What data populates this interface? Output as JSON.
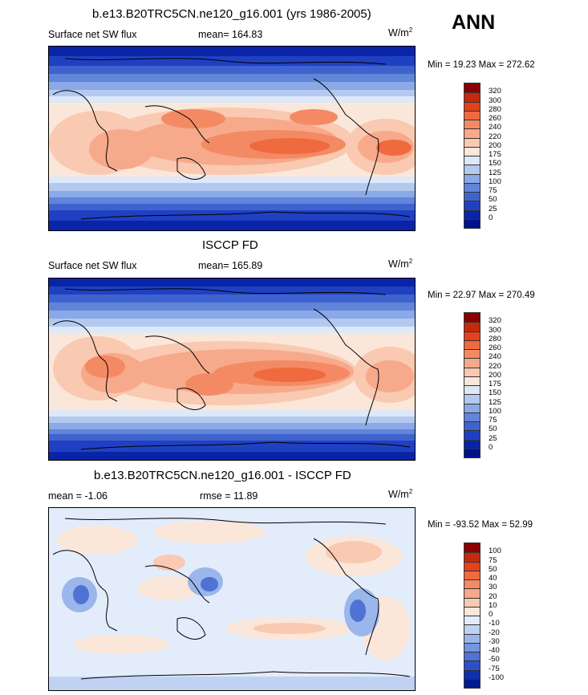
{
  "annotation": "ANN",
  "panels": [
    {
      "title": "b.e13.B20TRC5CN.ne120_g16.001 (yrs 1986-2005)",
      "left_label": "Surface net SW flux",
      "mid_label": "mean= 164.83",
      "units_base": "W/m",
      "units_sup": "2",
      "minmax": "Min =  19.23 Max = 272.62",
      "colorbar": {
        "labels": [
          "320",
          "300",
          "280",
          "260",
          "240",
          "220",
          "200",
          "175",
          "150",
          "125",
          "100",
          "75",
          "50",
          "25",
          "0"
        ],
        "colors": [
          "#8b0000",
          "#c52a0c",
          "#e6411d",
          "#f06a3f",
          "#f48a63",
          "#f7a98b",
          "#f9c9b1",
          "#fbe7d9",
          "#dde8f8",
          "#b4c9f0",
          "#8aa9e6",
          "#6185d9",
          "#3f63ce",
          "#2040c2",
          "#0a24a8",
          "#00128a"
        ]
      }
    },
    {
      "title": "ISCCP FD",
      "left_label": "Surface net SW flux",
      "mid_label": "mean= 165.89",
      "units_base": "W/m",
      "units_sup": "2",
      "minmax": "Min =  22.97 Max = 270.49",
      "colorbar": {
        "labels": [
          "320",
          "300",
          "280",
          "260",
          "240",
          "220",
          "200",
          "175",
          "150",
          "125",
          "100",
          "75",
          "50",
          "25",
          "0"
        ],
        "colors": [
          "#8b0000",
          "#c52a0c",
          "#e6411d",
          "#f06a3f",
          "#f48a63",
          "#f7a98b",
          "#f9c9b1",
          "#fbe7d9",
          "#dde8f8",
          "#b4c9f0",
          "#8aa9e6",
          "#6185d9",
          "#3f63ce",
          "#2040c2",
          "#0a24a8",
          "#00128a"
        ]
      }
    },
    {
      "title": "b.e13.B20TRC5CN.ne120_g16.001 - ISCCP FD",
      "left_label": "mean =  -1.06",
      "mid_label": "rmse =  11.89",
      "units_base": "W/m",
      "units_sup": "2",
      "minmax": "Min = -93.52 Max =  52.99",
      "colorbar": {
        "labels": [
          "100",
          "75",
          "50",
          "40",
          "30",
          "20",
          "10",
          "0",
          "-10",
          "-20",
          "-30",
          "-40",
          "-50",
          "-75",
          "-100"
        ],
        "colors": [
          "#8b0000",
          "#c52a0c",
          "#e6411d",
          "#f06a3f",
          "#f48a63",
          "#f7a98b",
          "#f9c9b1",
          "#fbe7d9",
          "#e3ecfa",
          "#c0d2f3",
          "#9bb6eb",
          "#7495e0",
          "#4f72d3",
          "#2d50c6",
          "#1030ad",
          "#001a8f"
        ]
      }
    }
  ]
}
